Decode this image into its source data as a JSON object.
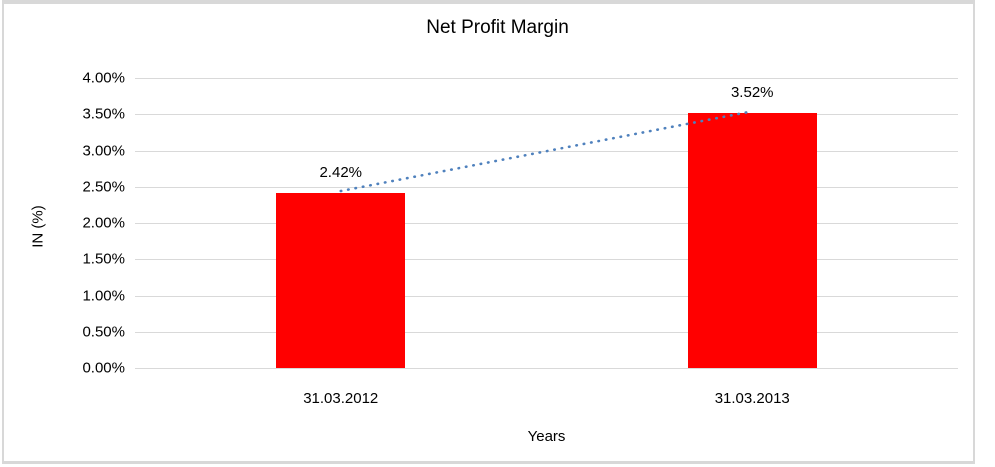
{
  "chart_data": {
    "type": "bar",
    "title": "Net Profit Margin",
    "xlabel": "Years",
    "ylabel": "IN (%)",
    "categories": [
      "31.03.2012",
      "31.03.2013"
    ],
    "values": [
      2.42,
      3.52
    ],
    "data_labels": [
      "2.42%",
      "3.52%"
    ],
    "ylim": [
      0,
      4
    ],
    "ytick_step": 0.5,
    "ytick_labels": [
      "0.00%",
      "0.50%",
      "1.00%",
      "1.50%",
      "2.00%",
      "2.50%",
      "3.00%",
      "3.50%",
      "4.00%"
    ],
    "grid": true,
    "legend": "none",
    "bar_color": "#FF0000",
    "gridline_color": "#D9D9D9",
    "frame_color": "#D8D8D8",
    "text_color": "#000000",
    "background": "#FFFFFF",
    "trendline": {
      "type": "linear",
      "style": "dotted",
      "color": "#4F81BD"
    }
  }
}
